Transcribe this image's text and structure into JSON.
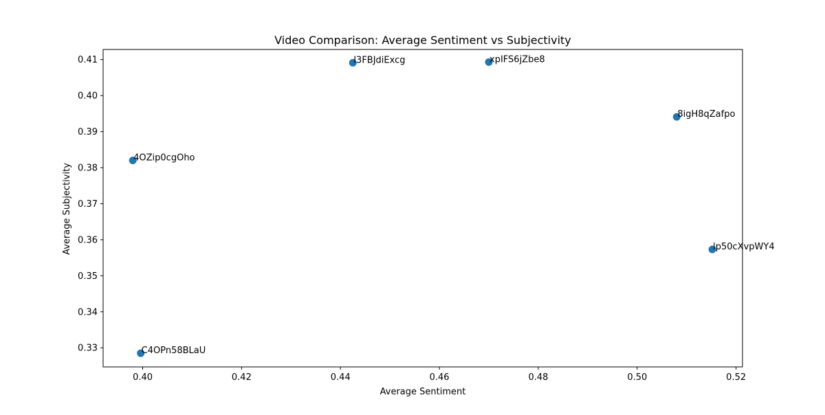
{
  "chart_data": {
    "type": "scatter",
    "title": "Video Comparison: Average Sentiment vs Subjectivity",
    "xlabel": "Average Sentiment",
    "ylabel": "Average Subjectivity",
    "xlim": [
      0.392,
      0.5213
    ],
    "ylim": [
      0.3247,
      0.4128
    ],
    "xticks": [
      0.4,
      0.42,
      0.44,
      0.46,
      0.48,
      0.5,
      0.52
    ],
    "xtick_labels": [
      "0.40",
      "0.42",
      "0.44",
      "0.46",
      "0.48",
      "0.50",
      "0.52"
    ],
    "yticks": [
      0.33,
      0.34,
      0.35,
      0.36,
      0.37,
      0.38,
      0.39,
      0.4,
      0.41
    ],
    "ytick_labels": [
      "0.33",
      "0.34",
      "0.35",
      "0.36",
      "0.37",
      "0.38",
      "0.39",
      "0.40",
      "0.41"
    ],
    "grid": false,
    "legend": "none",
    "marker_color": "#1f77b4",
    "points": [
      {
        "label": "I3FBJdiExcg",
        "x": 0.4425,
        "y": 0.4091
      },
      {
        "label": "xpIFS6jZbe8",
        "x": 0.47,
        "y": 0.4093
      },
      {
        "label": "8igH8qZafpo",
        "x": 0.508,
        "y": 0.3941
      },
      {
        "label": "4OZip0cgOho",
        "x": 0.398,
        "y": 0.382
      },
      {
        "label": "lp50cXvpWY4",
        "x": 0.5152,
        "y": 0.3573
      },
      {
        "label": "C4OPn58BLaU",
        "x": 0.3996,
        "y": 0.3285
      }
    ]
  }
}
